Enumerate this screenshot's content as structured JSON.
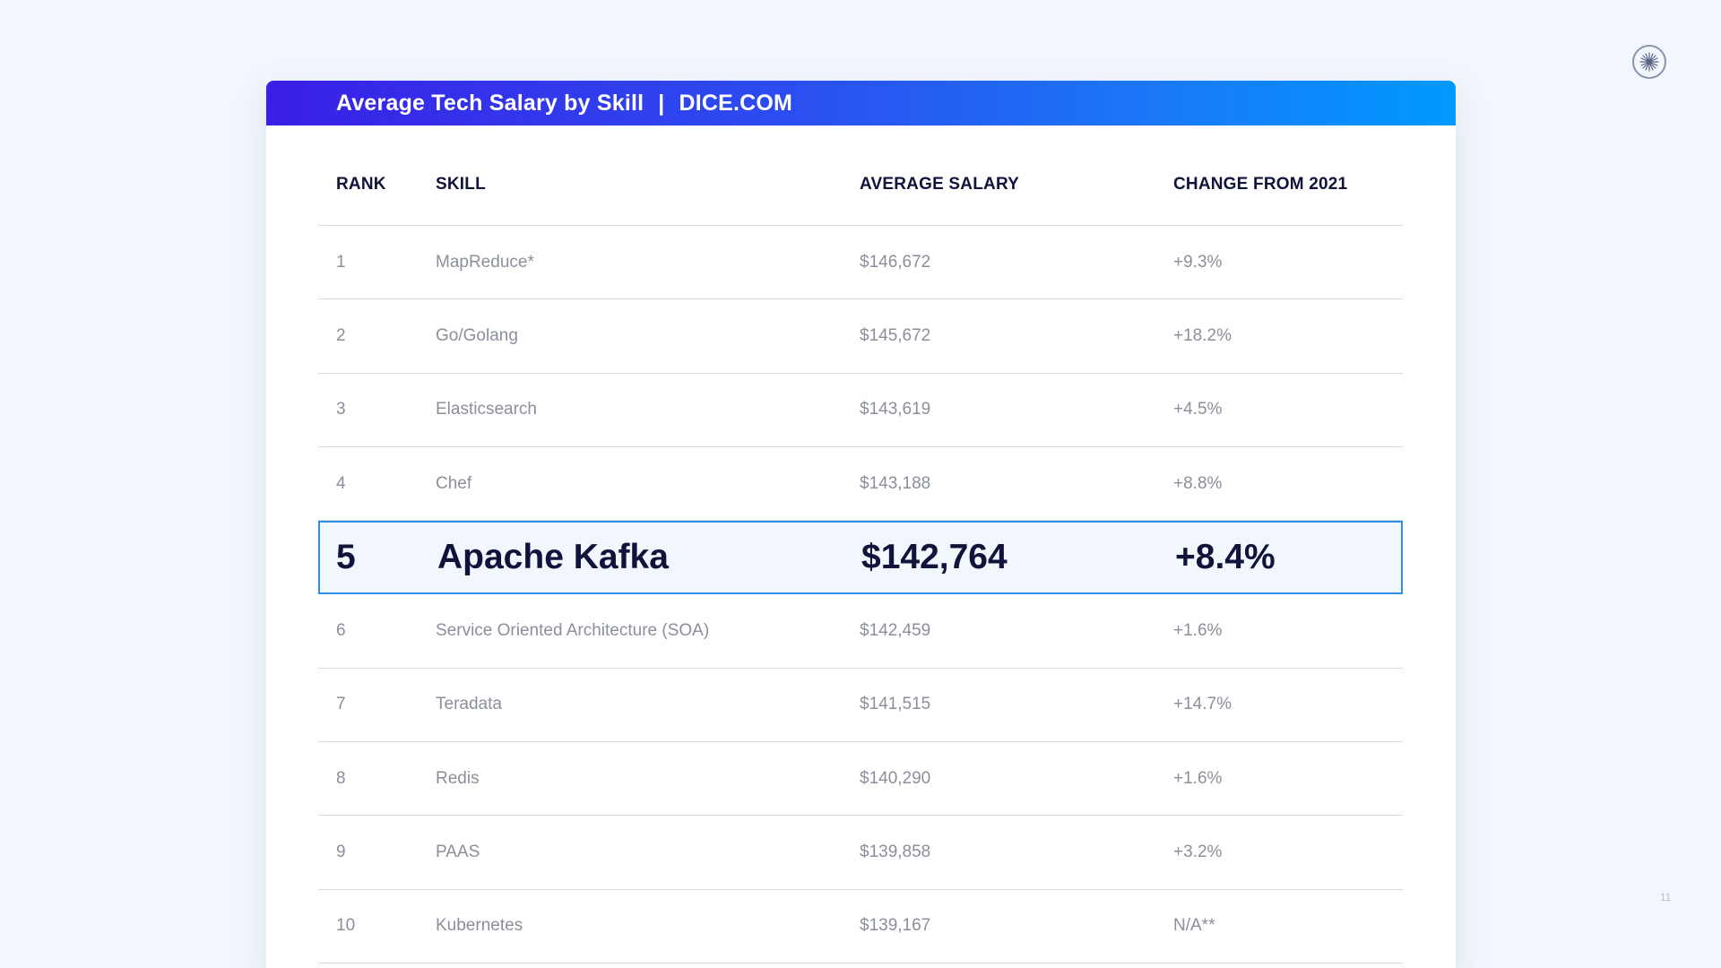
{
  "title": "Average Tech Salary by Skill",
  "source": "DICE.COM",
  "separator": "|",
  "logo_icon": "starburst-icon",
  "page_number": "11",
  "headers": {
    "rank": "RANK",
    "skill": "SKILL",
    "salary": "AVERAGE SALARY",
    "change": "CHANGE FROM 2021"
  },
  "rows": [
    {
      "rank": "1",
      "skill": "MapReduce*",
      "salary": "$146,672",
      "change": "+9.3%"
    },
    {
      "rank": "2",
      "skill": "Go/Golang",
      "salary": "$145,672",
      "change": "+18.2%"
    },
    {
      "rank": "3",
      "skill": "Elasticsearch",
      "salary": "$143,619",
      "change": "+4.5%"
    },
    {
      "rank": "4",
      "skill": "Chef",
      "salary": "$143,188",
      "change": "+8.8%"
    },
    {
      "rank": "5",
      "skill": "Apache Kafka",
      "salary": "$142,764",
      "change": "+8.4%",
      "highlighted": true
    },
    {
      "rank": "6",
      "skill": "Service Oriented Architecture (SOA)",
      "salary": "$142,459",
      "change": "+1.6%"
    },
    {
      "rank": "7",
      "skill": "Teradata",
      "salary": "$141,515",
      "change": "+14.7%"
    },
    {
      "rank": "8",
      "skill": "Redis",
      "salary": "$140,290",
      "change": "+1.6%"
    },
    {
      "rank": "9",
      "skill": "PAAS",
      "salary": "$139,858",
      "change": "+3.2%"
    },
    {
      "rank": "10",
      "skill": "Kubernetes",
      "salary": "$139,167",
      "change": "N/A**"
    }
  ],
  "colors": {
    "highlight_border": "#2e8fe8",
    "gradient_start": "#3a1fe6",
    "gradient_end": "#0099ff",
    "heading_text": "#10143a",
    "body_text": "#8b8f9b"
  }
}
